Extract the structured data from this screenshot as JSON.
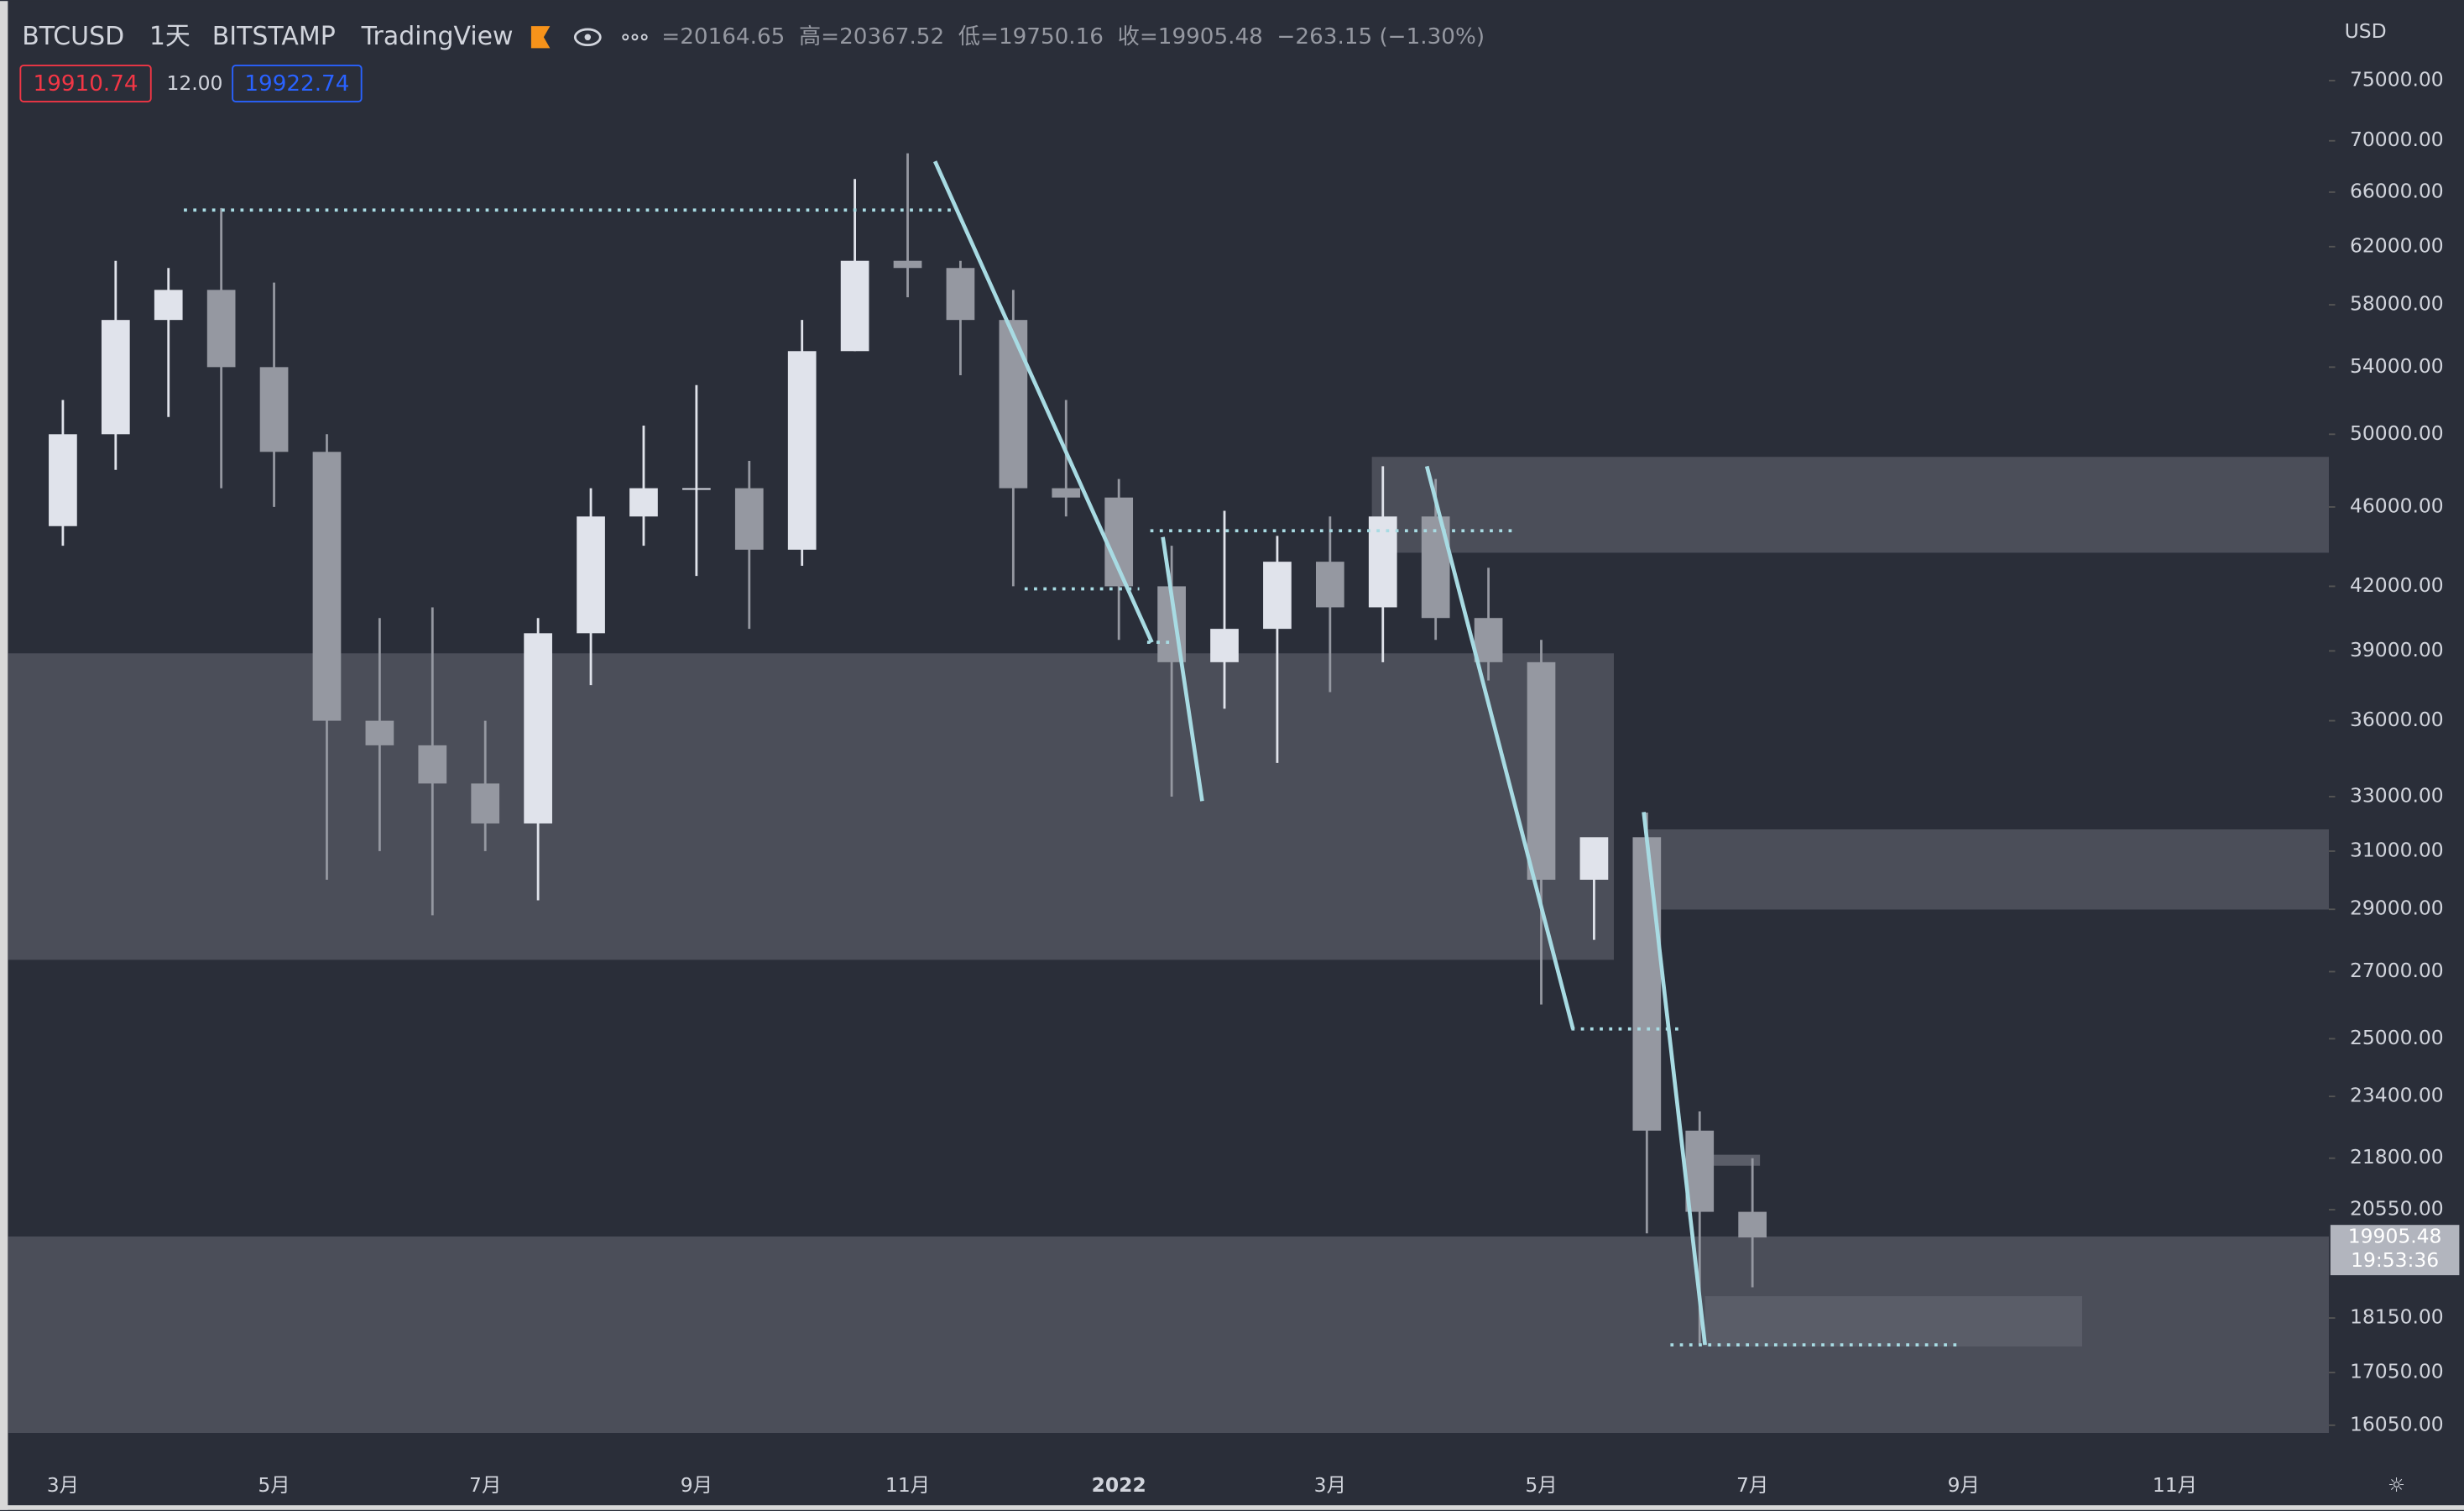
{
  "header": {
    "symbol": "BTCUSD",
    "interval": "1天",
    "exchange": "BITSTAMP",
    "source": "TradingView",
    "ohlc": "=20164.65  高=20367.52  低=19750.16  收=19905.48  −263.15 (−1.30%)",
    "sell": "19910.74",
    "spread": "12.00",
    "buy": "19922.74"
  },
  "chart_data": {
    "type": "candlestick",
    "currency": "USD",
    "countdown": "19:53:36",
    "log_scale": true,
    "grid": false,
    "up_color": "#e0e3eb",
    "down_color": "#9598a1",
    "categories": [
      "3月",
      null,
      null,
      null,
      "5月",
      null,
      null,
      null,
      "7月",
      null,
      null,
      null,
      "9月",
      null,
      null,
      null,
      "11月",
      null,
      null,
      null,
      "2022",
      null,
      null,
      null,
      "3月",
      null,
      null,
      null,
      "5月",
      null,
      null,
      null,
      "7月",
      null,
      null,
      null,
      "9月",
      null,
      null,
      null,
      "11月",
      null,
      null,
      null
    ],
    "open": [
      45000,
      50000,
      57000,
      59000,
      54000,
      49000,
      36000,
      35000,
      33500,
      32000,
      39800,
      45500,
      47000,
      47000,
      43800,
      55000,
      61000,
      60500,
      57000,
      47000,
      46500,
      42000,
      38500,
      40000,
      43200,
      41000,
      45500,
      40500,
      38500,
      30000,
      31500,
      22500,
      20500,
      null,
      null,
      null,
      null,
      null,
      null,
      null,
      null,
      null,
      null,
      null
    ],
    "high": [
      52000,
      61000,
      60500,
      64800,
      59500,
      50000,
      40500,
      41000,
      36000,
      40500,
      47000,
      50500,
      52900,
      48500,
      57000,
      67000,
      69000,
      61000,
      59000,
      52000,
      47500,
      44000,
      45800,
      44500,
      45500,
      48200,
      47500,
      42900,
      39500,
      31400,
      32400,
      23000,
      21800,
      null,
      null,
      null,
      null,
      null,
      null,
      null,
      null,
      null,
      null,
      null
    ],
    "low": [
      44000,
      48000,
      51000,
      47000,
      46000,
      30000,
      31000,
      28800,
      31000,
      29300,
      37500,
      44000,
      42500,
      40000,
      43000,
      55000,
      58500,
      53500,
      42000,
      45500,
      39500,
      33000,
      36500,
      34300,
      37200,
      38500,
      39500,
      37700,
      26000,
      28000,
      20000,
      17600,
      18800,
      null,
      null,
      null,
      null,
      null,
      null,
      null,
      null,
      null,
      null,
      null
    ],
    "close": [
      50000,
      57000,
      59000,
      54000,
      49000,
      36000,
      35000,
      33500,
      32000,
      39800,
      45500,
      47000,
      47000,
      43800,
      55000,
      61000,
      60500,
      57000,
      47000,
      46500,
      42000,
      38500,
      40000,
      43200,
      41000,
      45500,
      40500,
      38500,
      30000,
      31500,
      22500,
      20500,
      19905.48,
      null,
      null,
      null,
      null,
      null,
      null,
      null,
      null,
      null,
      null,
      null
    ],
    "ylim": [
      15880,
      80700
    ],
    "yticks": [
      {
        "value": 75000,
        "label": "75000.00"
      },
      {
        "value": 70000,
        "label": "70000.00"
      },
      {
        "value": 66000,
        "label": "66000.00"
      },
      {
        "value": 62000,
        "label": "62000.00"
      },
      {
        "value": 58000,
        "label": "58000.00"
      },
      {
        "value": 54000,
        "label": "54000.00"
      },
      {
        "value": 50000,
        "label": "50000.00"
      },
      {
        "value": 46000,
        "label": "46000.00"
      },
      {
        "value": 42000,
        "label": "42000.00"
      },
      {
        "value": 39000,
        "label": "39000.00"
      },
      {
        "value": 36000,
        "label": "36000.00"
      },
      {
        "value": 33000,
        "label": "33000.00"
      },
      {
        "value": 31000,
        "label": "31000.00"
      },
      {
        "value": 29000,
        "label": "29000.00"
      },
      {
        "value": 27000,
        "label": "27000.00"
      },
      {
        "value": 25000,
        "label": "25000.00"
      },
      {
        "value": 23400,
        "label": "23400.00"
      },
      {
        "value": 21800,
        "label": "21800.00"
      },
      {
        "value": 20550,
        "label": "20550.00"
      },
      {
        "value": 18150,
        "label": "18150.00"
      },
      {
        "value": 17050,
        "label": "17050.00"
      },
      {
        "value": 16050,
        "label": "16050.00"
      }
    ]
  }
}
